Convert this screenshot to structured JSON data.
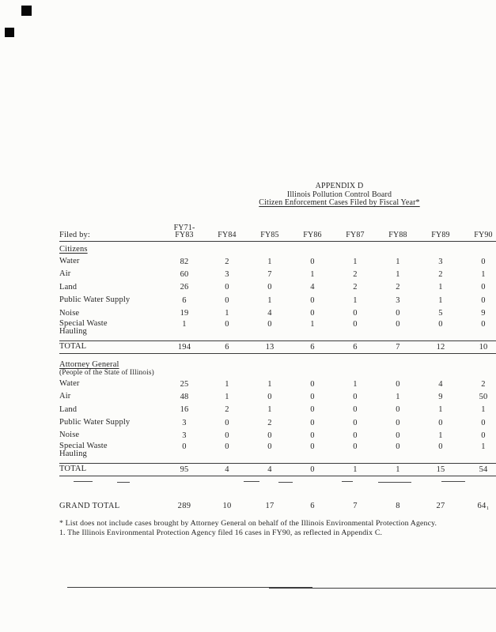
{
  "title": {
    "line1": "APPENDIX D",
    "line2": "Illinois Pollution Control Board",
    "line3": "Citizen Enforcement Cases Filed by Fiscal Year*"
  },
  "table": {
    "filed_by_label": "Filed by:",
    "columns": [
      [
        "FY71-",
        "FY83"
      ],
      [
        "FY84"
      ],
      [
        "FY85"
      ],
      [
        "FY86"
      ],
      [
        "FY87"
      ],
      [
        "FY88"
      ],
      [
        "FY89"
      ],
      [
        "FY90"
      ]
    ],
    "sections": [
      {
        "heading": "Citizens",
        "subheading": null,
        "rows": [
          {
            "label": "Water",
            "values": [
              "82",
              "2",
              "1",
              "0",
              "1",
              "1",
              "3",
              "0"
            ]
          },
          {
            "label": "Air",
            "values": [
              "60",
              "3",
              "7",
              "1",
              "2",
              "1",
              "2",
              "1"
            ]
          },
          {
            "label": "Land",
            "values": [
              "26",
              "0",
              "0",
              "4",
              "2",
              "2",
              "1",
              "0"
            ]
          },
          {
            "label": "Public Water Supply",
            "values": [
              "6",
              "0",
              "1",
              "0",
              "1",
              "3",
              "1",
              "0"
            ]
          },
          {
            "label": "Noise",
            "values": [
              "19",
              "1",
              "4",
              "0",
              "0",
              "0",
              "5",
              "9"
            ]
          },
          {
            "label": "Special Waste\nHauling",
            "values": [
              "1",
              "0",
              "0",
              "1",
              "0",
              "0",
              "0",
              "0"
            ]
          }
        ],
        "total": {
          "label": "TOTAL",
          "values": [
            "194",
            "6",
            "13",
            "6",
            "6",
            "7",
            "12",
            "10"
          ]
        }
      },
      {
        "heading": "Attorney General",
        "subheading": "(People of the State of Illinois)",
        "rows": [
          {
            "label": "Water",
            "values": [
              "25",
              "1",
              "1",
              "0",
              "1",
              "0",
              "4",
              "2"
            ]
          },
          {
            "label": "Air",
            "values": [
              "48",
              "1",
              "0",
              "0",
              "0",
              "1",
              "9",
              "50"
            ]
          },
          {
            "label": "Land",
            "values": [
              "16",
              "2",
              "1",
              "0",
              "0",
              "0",
              "1",
              "1"
            ]
          },
          {
            "label": "Public Water Supply",
            "values": [
              "3",
              "0",
              "2",
              "0",
              "0",
              "0",
              "0",
              "0"
            ]
          },
          {
            "label": "Noise",
            "values": [
              "3",
              "0",
              "0",
              "0",
              "0",
              "0",
              "1",
              "0"
            ]
          },
          {
            "label": "Special Waste\nHauling",
            "values": [
              "0",
              "0",
              "0",
              "0",
              "0",
              "0",
              "0",
              "1"
            ]
          }
        ],
        "total": {
          "label": "TOTAL",
          "values": [
            "95",
            "4",
            "4",
            "0",
            "1",
            "1",
            "15",
            "54"
          ]
        }
      }
    ],
    "grand_total": {
      "label": "GRAND TOTAL",
      "values": [
        "289",
        "10",
        "17",
        "6",
        "7",
        "8",
        "27",
        "64₁"
      ]
    }
  },
  "footnotes": [
    "* List does not include cases brought by Attorney General on behalf of the Illinois Environmental Protection Agency.",
    "1.  The Illinois Environmental Protection Agency filed 16 cases in FY90, as reflected in Appendix C."
  ]
}
